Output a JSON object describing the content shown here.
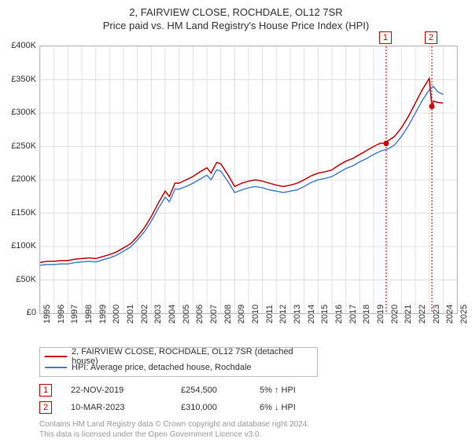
{
  "title_main": "2, FAIRVIEW CLOSE, ROCHDALE, OL12 7SR",
  "title_sub": "Price paid vs. HM Land Registry's House Price Index (HPI)",
  "chart": {
    "x_min": 1995,
    "x_max": 2025,
    "y_min": 0,
    "y_max": 400000,
    "y_ticks": [
      0,
      50000,
      100000,
      150000,
      200000,
      250000,
      300000,
      350000,
      400000
    ],
    "y_tick_labels": [
      "£0",
      "£50K",
      "£100K",
      "£150K",
      "£200K",
      "£250K",
      "£300K",
      "£350K",
      "£400K"
    ],
    "x_ticks": [
      1995,
      1996,
      1997,
      1998,
      1999,
      2000,
      2001,
      2002,
      2003,
      2004,
      2005,
      2006,
      2007,
      2008,
      2009,
      2010,
      2011,
      2012,
      2013,
      2014,
      2015,
      2016,
      2017,
      2018,
      2019,
      2020,
      2021,
      2022,
      2023,
      2024,
      2025
    ],
    "grid_color": "#e0e0e0",
    "border_color": "#bbbbbb",
    "background_color": "#ffffff",
    "series": {
      "price_paid": {
        "color": "#cc0000",
        "width": 1.5,
        "data": [
          [
            1995,
            76000
          ],
          [
            1995.5,
            78000
          ],
          [
            1996,
            78000
          ],
          [
            1996.5,
            79000
          ],
          [
            1997,
            79000
          ],
          [
            1997.5,
            81000
          ],
          [
            1998,
            82000
          ],
          [
            1998.5,
            83000
          ],
          [
            1999,
            82000
          ],
          [
            1999.5,
            85000
          ],
          [
            2000,
            88000
          ],
          [
            2000.5,
            92000
          ],
          [
            2001,
            98000
          ],
          [
            2001.5,
            104000
          ],
          [
            2002,
            115000
          ],
          [
            2002.5,
            128000
          ],
          [
            2003,
            145000
          ],
          [
            2003.5,
            165000
          ],
          [
            2004,
            183000
          ],
          [
            2004.3,
            175000
          ],
          [
            2004.7,
            195000
          ],
          [
            2005,
            195000
          ],
          [
            2005.5,
            200000
          ],
          [
            2006,
            205000
          ],
          [
            2006.5,
            212000
          ],
          [
            2007,
            218000
          ],
          [
            2007.3,
            210000
          ],
          [
            2007.7,
            226000
          ],
          [
            2008,
            224000
          ],
          [
            2008.5,
            208000
          ],
          [
            2009,
            190000
          ],
          [
            2009.5,
            195000
          ],
          [
            2010,
            198000
          ],
          [
            2010.5,
            200000
          ],
          [
            2011,
            198000
          ],
          [
            2011.5,
            195000
          ],
          [
            2012,
            192000
          ],
          [
            2012.5,
            190000
          ],
          [
            2013,
            192000
          ],
          [
            2013.5,
            195000
          ],
          [
            2014,
            200000
          ],
          [
            2014.5,
            206000
          ],
          [
            2015,
            210000
          ],
          [
            2015.5,
            212000
          ],
          [
            2016,
            215000
          ],
          [
            2016.5,
            222000
          ],
          [
            2017,
            228000
          ],
          [
            2017.5,
            232000
          ],
          [
            2018,
            238000
          ],
          [
            2018.5,
            244000
          ],
          [
            2019,
            250000
          ],
          [
            2019.5,
            255000
          ],
          [
            2019.9,
            254500
          ],
          [
            2020,
            258000
          ],
          [
            2020.5,
            265000
          ],
          [
            2021,
            278000
          ],
          [
            2021.5,
            295000
          ],
          [
            2022,
            315000
          ],
          [
            2022.5,
            335000
          ],
          [
            2023,
            352000
          ],
          [
            2023.19,
            310000
          ],
          [
            2023.3,
            318000
          ],
          [
            2023.6,
            316000
          ],
          [
            2024,
            315000
          ]
        ]
      },
      "hpi": {
        "color": "#4682d4",
        "width": 1.5,
        "data": [
          [
            1995,
            72000
          ],
          [
            1995.5,
            73000
          ],
          [
            1996,
            73000
          ],
          [
            1996.5,
            74000
          ],
          [
            1997,
            74000
          ],
          [
            1997.5,
            76000
          ],
          [
            1998,
            77000
          ],
          [
            1998.5,
            78000
          ],
          [
            1999,
            77000
          ],
          [
            1999.5,
            80000
          ],
          [
            2000,
            83000
          ],
          [
            2000.5,
            87000
          ],
          [
            2001,
            93000
          ],
          [
            2001.5,
            99000
          ],
          [
            2002,
            110000
          ],
          [
            2002.5,
            122000
          ],
          [
            2003,
            138000
          ],
          [
            2003.5,
            157000
          ],
          [
            2004,
            174000
          ],
          [
            2004.3,
            167000
          ],
          [
            2004.7,
            186000
          ],
          [
            2005,
            186000
          ],
          [
            2005.5,
            190000
          ],
          [
            2006,
            195000
          ],
          [
            2006.5,
            201000
          ],
          [
            2007,
            207000
          ],
          [
            2007.3,
            200000
          ],
          [
            2007.7,
            215000
          ],
          [
            2008,
            213000
          ],
          [
            2008.5,
            198000
          ],
          [
            2009,
            181000
          ],
          [
            2009.5,
            185000
          ],
          [
            2010,
            188000
          ],
          [
            2010.5,
            190000
          ],
          [
            2011,
            188000
          ],
          [
            2011.5,
            185000
          ],
          [
            2012,
            183000
          ],
          [
            2012.5,
            181000
          ],
          [
            2013,
            183000
          ],
          [
            2013.5,
            185000
          ],
          [
            2014,
            190000
          ],
          [
            2014.5,
            196000
          ],
          [
            2015,
            200000
          ],
          [
            2015.5,
            202000
          ],
          [
            2016,
            205000
          ],
          [
            2016.5,
            211000
          ],
          [
            2017,
            217000
          ],
          [
            2017.5,
            221000
          ],
          [
            2018,
            227000
          ],
          [
            2018.5,
            232000
          ],
          [
            2019,
            238000
          ],
          [
            2019.5,
            243000
          ],
          [
            2020,
            246000
          ],
          [
            2020.5,
            252000
          ],
          [
            2021,
            265000
          ],
          [
            2021.5,
            281000
          ],
          [
            2022,
            300000
          ],
          [
            2022.5,
            319000
          ],
          [
            2023,
            335000
          ],
          [
            2023.3,
            340000
          ],
          [
            2023.6,
            332000
          ],
          [
            2024,
            328000
          ]
        ]
      }
    },
    "marker_bands": [
      {
        "x": 2019.9,
        "color": "#cc0000",
        "badge": "1",
        "badge_top_offset": -18
      },
      {
        "x": 2023.19,
        "color": "#cc0000",
        "badge": "2",
        "badge_top_offset": -18
      }
    ],
    "sale_points": [
      {
        "x": 2019.9,
        "y": 254500,
        "color": "#cc0000"
      },
      {
        "x": 2023.19,
        "y": 310000,
        "color": "#cc0000"
      }
    ]
  },
  "legend": {
    "items": [
      {
        "color": "#cc0000",
        "label": "2, FAIRVIEW CLOSE, ROCHDALE, OL12 7SR (detached house)"
      },
      {
        "color": "#4682d4",
        "label": "HPI: Average price, detached house, Rochdale"
      }
    ]
  },
  "markers": [
    {
      "badge": "1",
      "date": "22-NOV-2019",
      "price": "£254,500",
      "pct": "5% ↑ HPI"
    },
    {
      "badge": "2",
      "date": "10-MAR-2023",
      "price": "£310,000",
      "pct": "6% ↓ HPI"
    }
  ],
  "footer_line1": "Contains HM Land Registry data © Crown copyright and database right 2024.",
  "footer_line2": "This data is licensed under the Open Government Licence v3.0."
}
